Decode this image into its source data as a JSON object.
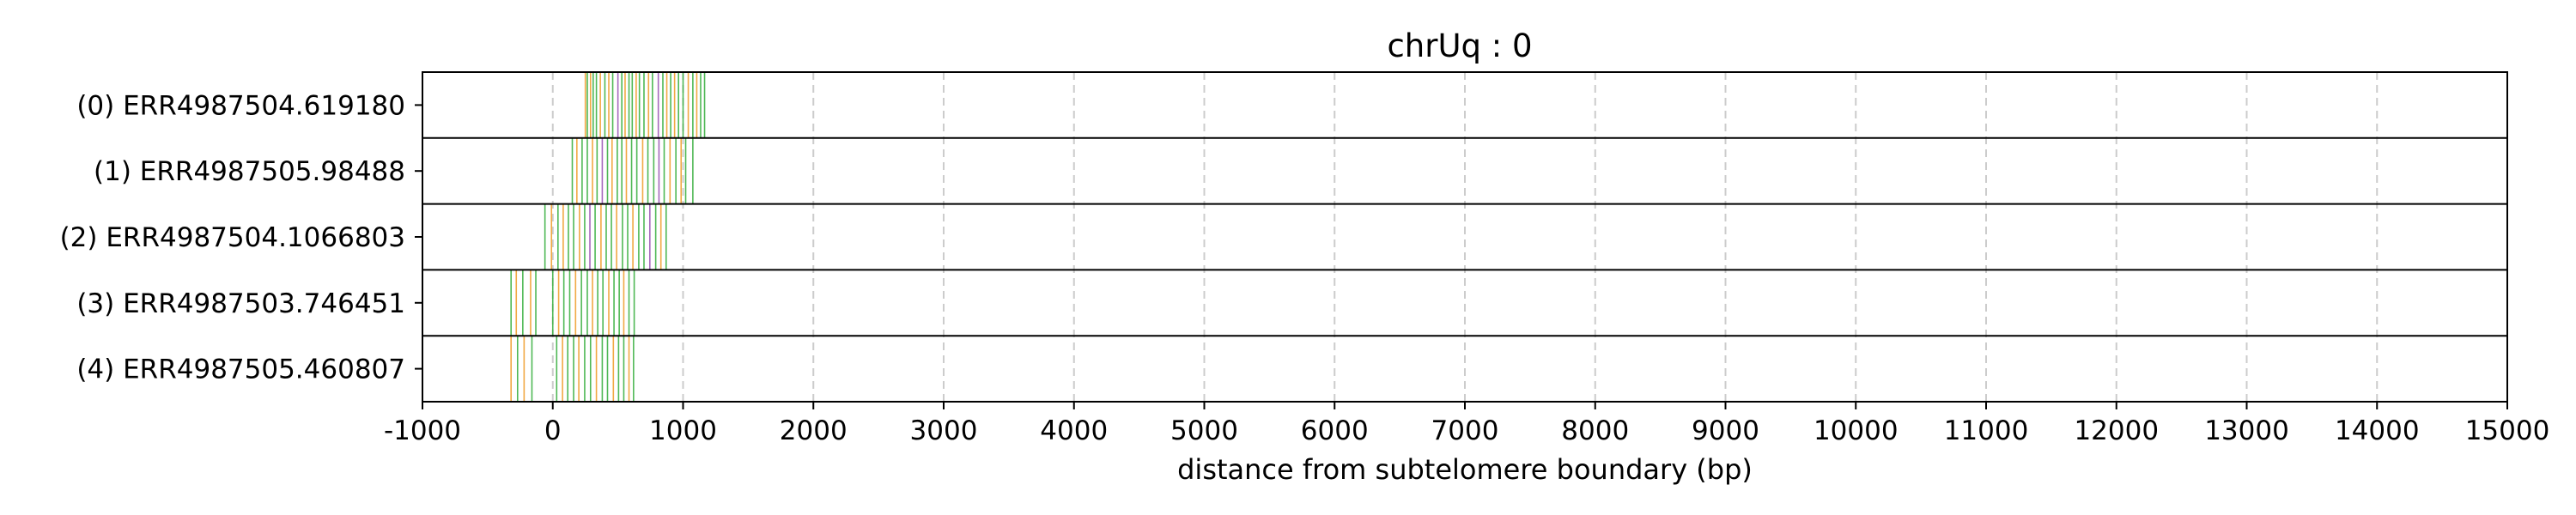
{
  "chart_data": {
    "type": "event-track",
    "title": "chrUq : 0",
    "xlabel": "distance from subtelomere boundary (bp)",
    "ylabel": "",
    "xlim": [
      -1000,
      15000
    ],
    "xticks": [
      -1000,
      0,
      1000,
      2000,
      3000,
      4000,
      5000,
      6000,
      7000,
      8000,
      9000,
      10000,
      11000,
      12000,
      13000,
      14000,
      15000
    ],
    "grid": {
      "x": true,
      "style": "dashed",
      "color": "#cccccc"
    },
    "colors": {
      "green": "#3cb043",
      "orange": "#f0a030",
      "purple": "#9b59b6"
    },
    "rows": [
      {
        "label": "(0) ERR4987504.619180",
        "events": [
          {
            "x": 250,
            "c": "orange"
          },
          {
            "x": 265,
            "c": "green"
          },
          {
            "x": 290,
            "c": "orange"
          },
          {
            "x": 310,
            "c": "green"
          },
          {
            "x": 335,
            "c": "green"
          },
          {
            "x": 365,
            "c": "orange"
          },
          {
            "x": 400,
            "c": "green"
          },
          {
            "x": 430,
            "c": "orange"
          },
          {
            "x": 460,
            "c": "green"
          },
          {
            "x": 500,
            "c": "purple"
          },
          {
            "x": 530,
            "c": "green"
          },
          {
            "x": 555,
            "c": "orange"
          },
          {
            "x": 585,
            "c": "green"
          },
          {
            "x": 610,
            "c": "green"
          },
          {
            "x": 640,
            "c": "orange"
          },
          {
            "x": 665,
            "c": "green"
          },
          {
            "x": 700,
            "c": "green"
          },
          {
            "x": 735,
            "c": "orange"
          },
          {
            "x": 765,
            "c": "green"
          },
          {
            "x": 810,
            "c": "purple"
          },
          {
            "x": 845,
            "c": "green"
          },
          {
            "x": 875,
            "c": "orange"
          },
          {
            "x": 905,
            "c": "green"
          },
          {
            "x": 935,
            "c": "orange"
          },
          {
            "x": 965,
            "c": "green"
          },
          {
            "x": 1000,
            "c": "green"
          },
          {
            "x": 1040,
            "c": "orange"
          },
          {
            "x": 1075,
            "c": "green"
          },
          {
            "x": 1105,
            "c": "orange"
          },
          {
            "x": 1135,
            "c": "green"
          },
          {
            "x": 1165,
            "c": "green"
          }
        ]
      },
      {
        "label": "(1) ERR4987505.98488",
        "events": [
          {
            "x": 150,
            "c": "green"
          },
          {
            "x": 185,
            "c": "orange"
          },
          {
            "x": 225,
            "c": "green"
          },
          {
            "x": 265,
            "c": "green"
          },
          {
            "x": 305,
            "c": "orange"
          },
          {
            "x": 340,
            "c": "green"
          },
          {
            "x": 380,
            "c": "purple"
          },
          {
            "x": 420,
            "c": "green"
          },
          {
            "x": 455,
            "c": "orange"
          },
          {
            "x": 495,
            "c": "green"
          },
          {
            "x": 530,
            "c": "green"
          },
          {
            "x": 565,
            "c": "orange"
          },
          {
            "x": 605,
            "c": "green"
          },
          {
            "x": 645,
            "c": "green"
          },
          {
            "x": 690,
            "c": "orange"
          },
          {
            "x": 730,
            "c": "green"
          },
          {
            "x": 775,
            "c": "green"
          },
          {
            "x": 815,
            "c": "purple"
          },
          {
            "x": 855,
            "c": "green"
          },
          {
            "x": 900,
            "c": "orange"
          },
          {
            "x": 945,
            "c": "green"
          },
          {
            "x": 985,
            "c": "orange"
          },
          {
            "x": 1020,
            "c": "green"
          },
          {
            "x": 1075,
            "c": "green"
          }
        ]
      },
      {
        "label": "(2) ERR4987504.1066803",
        "events": [
          {
            "x": -60,
            "c": "green"
          },
          {
            "x": -10,
            "c": "orange"
          },
          {
            "x": 40,
            "c": "green"
          },
          {
            "x": 80,
            "c": "orange"
          },
          {
            "x": 120,
            "c": "green"
          },
          {
            "x": 160,
            "c": "green"
          },
          {
            "x": 205,
            "c": "orange"
          },
          {
            "x": 245,
            "c": "green"
          },
          {
            "x": 285,
            "c": "purple"
          },
          {
            "x": 325,
            "c": "green"
          },
          {
            "x": 370,
            "c": "orange"
          },
          {
            "x": 410,
            "c": "green"
          },
          {
            "x": 450,
            "c": "green"
          },
          {
            "x": 490,
            "c": "orange"
          },
          {
            "x": 535,
            "c": "green"
          },
          {
            "x": 575,
            "c": "green"
          },
          {
            "x": 615,
            "c": "orange"
          },
          {
            "x": 660,
            "c": "green"
          },
          {
            "x": 700,
            "c": "green"
          },
          {
            "x": 745,
            "c": "purple"
          },
          {
            "x": 790,
            "c": "green"
          },
          {
            "x": 830,
            "c": "orange"
          },
          {
            "x": 870,
            "c": "green"
          }
        ]
      },
      {
        "label": "(3) ERR4987503.746451",
        "events": [
          {
            "x": -320,
            "c": "green"
          },
          {
            "x": -280,
            "c": "orange"
          },
          {
            "x": -230,
            "c": "green"
          },
          {
            "x": -170,
            "c": "orange"
          },
          {
            "x": -130,
            "c": "green"
          },
          {
            "x": 0,
            "c": "green"
          },
          {
            "x": 45,
            "c": "orange"
          },
          {
            "x": 85,
            "c": "green"
          },
          {
            "x": 130,
            "c": "green"
          },
          {
            "x": 175,
            "c": "orange"
          },
          {
            "x": 220,
            "c": "green"
          },
          {
            "x": 265,
            "c": "green"
          },
          {
            "x": 305,
            "c": "orange"
          },
          {
            "x": 345,
            "c": "green"
          },
          {
            "x": 385,
            "c": "green"
          },
          {
            "x": 430,
            "c": "orange"
          },
          {
            "x": 470,
            "c": "green"
          },
          {
            "x": 510,
            "c": "green"
          },
          {
            "x": 545,
            "c": "orange"
          },
          {
            "x": 585,
            "c": "green"
          },
          {
            "x": 625,
            "c": "green"
          }
        ]
      },
      {
        "label": "(4) ERR4987505.460807",
        "events": [
          {
            "x": -320,
            "c": "orange"
          },
          {
            "x": -270,
            "c": "green"
          },
          {
            "x": -220,
            "c": "orange"
          },
          {
            "x": -160,
            "c": "green"
          },
          {
            "x": 30,
            "c": "green"
          },
          {
            "x": 75,
            "c": "orange"
          },
          {
            "x": 115,
            "c": "green"
          },
          {
            "x": 160,
            "c": "green"
          },
          {
            "x": 200,
            "c": "orange"
          },
          {
            "x": 245,
            "c": "green"
          },
          {
            "x": 290,
            "c": "green"
          },
          {
            "x": 335,
            "c": "orange"
          },
          {
            "x": 380,
            "c": "green"
          },
          {
            "x": 420,
            "c": "green"
          },
          {
            "x": 465,
            "c": "orange"
          },
          {
            "x": 505,
            "c": "green"
          },
          {
            "x": 545,
            "c": "green"
          },
          {
            "x": 585,
            "c": "orange"
          },
          {
            "x": 620,
            "c": "green"
          }
        ]
      }
    ]
  }
}
